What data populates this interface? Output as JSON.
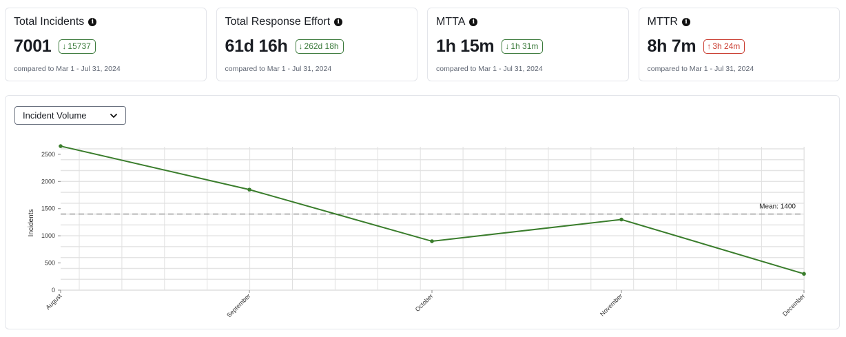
{
  "cards": [
    {
      "title": "Total Incidents",
      "value": "7001",
      "delta": "15737",
      "delta_direction": "down",
      "compare": "compared to Mar 1 - Jul 31, 2024"
    },
    {
      "title": "Total Response Effort",
      "value": "61d 16h",
      "delta": "262d 18h",
      "delta_direction": "down",
      "compare": "compared to Mar 1 - Jul 31, 2024"
    },
    {
      "title": "MTTA",
      "value": "1h 15m",
      "delta": "1h 31m",
      "delta_direction": "down",
      "compare": "compared to Mar 1 - Jul 31, 2024"
    },
    {
      "title": "MTTR",
      "value": "8h 7m",
      "delta": "3h 24m",
      "delta_direction": "up",
      "compare": "compared to Mar 1 - Jul 31, 2024"
    }
  ],
  "icons": {
    "info": "info-icon",
    "down": "↓",
    "up": "↑",
    "chevron": "chevron-down-icon"
  },
  "colors": {
    "positive": "#3b7a3b",
    "negative": "#c93a2e",
    "line": "#3a7d2c"
  },
  "metric_select": {
    "selected": "Incident Volume"
  },
  "chart_data": {
    "type": "line",
    "title": "",
    "xlabel": "",
    "ylabel": "Incidents",
    "categories": [
      "August",
      "September",
      "October",
      "November",
      "December"
    ],
    "series": [
      {
        "name": "Incidents",
        "values": [
          2650,
          1850,
          900,
          1300,
          300
        ]
      }
    ],
    "ylim": [
      0,
      2600
    ],
    "yticks": [
      0,
      500,
      1000,
      1500,
      2000,
      2500
    ],
    "grid": true,
    "mean": {
      "value": 1400,
      "label": "Mean: 1400"
    },
    "legend": null
  }
}
